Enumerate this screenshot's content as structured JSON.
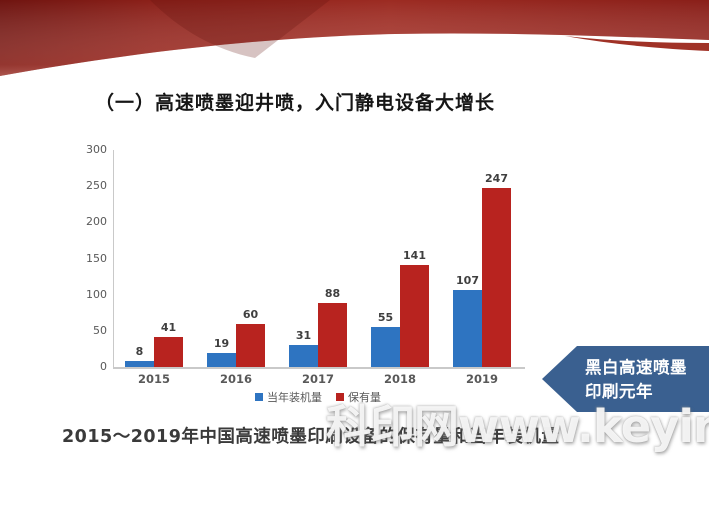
{
  "page": {
    "title": "（一）高速喷墨迎井喷，入门静电设备大增长",
    "caption": "2015～2019年中国高速喷墨印刷设备的保有量和当年装机量",
    "watermark": "科印网www.keyin.cn"
  },
  "callout": {
    "line1": "黑白高速喷墨",
    "line2": "印刷元年",
    "fill_color": "#3a6090"
  },
  "colors": {
    "installed_bar": "#2e74c1",
    "owned_bar": "#b8231f",
    "ribbon_dark": "#6f1410",
    "ribbon_mid": "#9c2b22",
    "ribbon_right": "#8a1f19",
    "axis_line": "#c9c9c9",
    "axis_text": "#595959"
  },
  "chart_data": {
    "type": "bar",
    "title": "",
    "xlabel": "",
    "ylabel": "",
    "categories": [
      "2015",
      "2016",
      "2017",
      "2018",
      "2019"
    ],
    "series": [
      {
        "name": "当年装机量",
        "color": "#2e74c1",
        "values": [
          8,
          19,
          31,
          55,
          107
        ]
      },
      {
        "name": "保有量",
        "color": "#b8231f",
        "values": [
          41,
          60,
          88,
          141,
          247
        ]
      }
    ],
    "ylim": [
      0,
      300
    ],
    "yticks": [
      0,
      50,
      100,
      150,
      200,
      250,
      300
    ],
    "grid": false,
    "legend_position": "bottom"
  }
}
